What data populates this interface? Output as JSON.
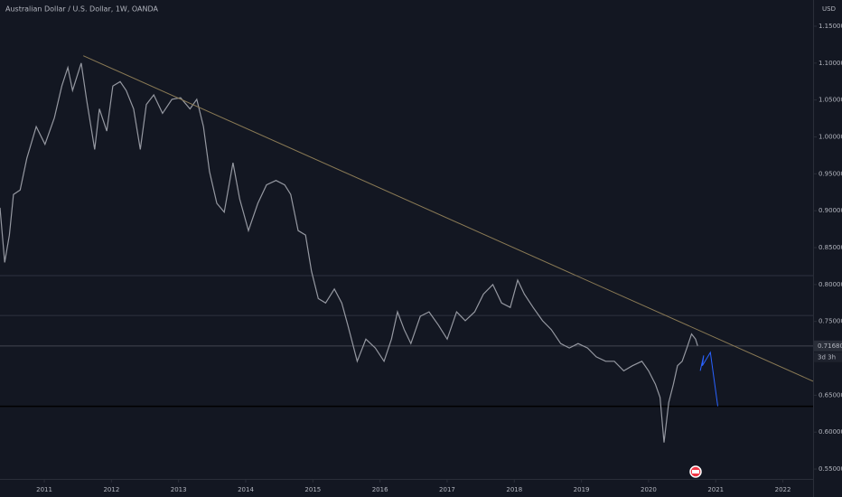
{
  "chart_data": {
    "type": "line",
    "title": "Australian Dollar / U.S. Dollar, 1W, OANDA",
    "unit": "USD",
    "color": "#9598a1",
    "x": [
      2010.34,
      2010.41,
      2010.48,
      2010.54,
      2010.64,
      2010.74,
      2010.88,
      2011.01,
      2011.15,
      2011.26,
      2011.35,
      2011.42,
      2011.55,
      2011.63,
      2011.75,
      2011.82,
      2011.93,
      2012.02,
      2012.13,
      2012.22,
      2012.33,
      2012.43,
      2012.52,
      2012.63,
      2012.76,
      2012.9,
      2013.03,
      2013.17,
      2013.27,
      2013.37,
      2013.46,
      2013.57,
      2013.68,
      2013.81,
      2013.91,
      2014.04,
      2014.18,
      2014.31,
      2014.45,
      2014.58,
      2014.67,
      2014.78,
      2014.89,
      2014.98,
      2015.08,
      2015.19,
      2015.32,
      2015.43,
      2015.52,
      2015.66,
      2015.79,
      2015.93,
      2016.06,
      2016.17,
      2016.26,
      2016.36,
      2016.46,
      2016.6,
      2016.73,
      2016.87,
      2017.0,
      2017.14,
      2017.27,
      2017.41,
      2017.54,
      2017.68,
      2017.81,
      2017.94,
      2018.05,
      2018.15,
      2018.28,
      2018.42,
      2018.55,
      2018.69,
      2018.82,
      2018.95,
      2019.09,
      2019.22,
      2019.36,
      2019.49,
      2019.63,
      2019.76,
      2019.9,
      2020.0,
      2020.1,
      2020.17,
      2020.23,
      2020.3,
      2020.37,
      2020.43,
      2020.5,
      2020.57,
      2020.64,
      2020.7,
      2020.73
    ],
    "values": [
      0.904,
      0.83,
      0.867,
      0.922,
      0.928,
      0.971,
      1.014,
      0.99,
      1.026,
      1.069,
      1.094,
      1.063,
      1.1,
      1.05,
      0.983,
      1.038,
      1.008,
      1.069,
      1.075,
      1.063,
      1.038,
      0.983,
      1.044,
      1.057,
      1.032,
      1.051,
      1.053,
      1.038,
      1.051,
      1.014,
      0.953,
      0.91,
      0.898,
      0.965,
      0.916,
      0.873,
      0.91,
      0.935,
      0.941,
      0.935,
      0.922,
      0.873,
      0.867,
      0.818,
      0.781,
      0.775,
      0.794,
      0.775,
      0.745,
      0.696,
      0.726,
      0.714,
      0.696,
      0.726,
      0.763,
      0.739,
      0.72,
      0.757,
      0.763,
      0.745,
      0.726,
      0.763,
      0.751,
      0.763,
      0.787,
      0.8,
      0.775,
      0.769,
      0.806,
      0.787,
      0.769,
      0.751,
      0.739,
      0.72,
      0.714,
      0.72,
      0.714,
      0.702,
      0.696,
      0.696,
      0.683,
      0.69,
      0.696,
      0.683,
      0.665,
      0.647,
      0.586,
      0.64,
      0.665,
      0.69,
      0.696,
      0.714,
      0.733,
      0.726,
      0.717
    ],
    "xlim": [
      2010.34,
      2022.45
    ],
    "xticks": [
      2011,
      2012,
      2013,
      2014,
      2015,
      2016,
      2017,
      2018,
      2019,
      2020,
      2021,
      2022
    ],
    "ylim": [
      0.5366,
      1.1855
    ],
    "yticks": [
      {
        "value": 0.55,
        "label": "0.55000"
      },
      {
        "value": 0.6,
        "label": "0.60000"
      },
      {
        "value": 0.65,
        "label": "0.65000"
      },
      {
        "value": 0.7,
        "label": "0.70000"
      },
      {
        "value": 0.75,
        "label": "0.75000"
      },
      {
        "value": 0.8,
        "label": "0.80000"
      },
      {
        "value": 0.85,
        "label": "0.85000"
      },
      {
        "value": 0.9,
        "label": "0.90000"
      },
      {
        "value": 0.95,
        "label": "0.95000"
      },
      {
        "value": 1.0,
        "label": "1.00000"
      },
      {
        "value": 1.05,
        "label": "1.05000"
      },
      {
        "value": 1.1,
        "label": "1.10000"
      },
      {
        "value": 1.15,
        "label": "1.15000"
      }
    ],
    "levels": [
      0.812,
      0.758,
      0.635
    ],
    "last_price": {
      "value": 0.7168,
      "label": "0.71680"
    },
    "countdown": "3d 3h",
    "trendline": {
      "color": "#8a7a55",
      "x": [
        2011.58,
        2022.45
      ],
      "values": [
        1.11,
        0.669
      ]
    },
    "projection": {
      "color": "#2962ff",
      "x": [
        2020.77,
        2020.82,
        2020.8,
        2020.92,
        2021.03
      ],
      "values": [
        0.683,
        0.704,
        0.69,
        0.708,
        0.635
      ]
    }
  }
}
